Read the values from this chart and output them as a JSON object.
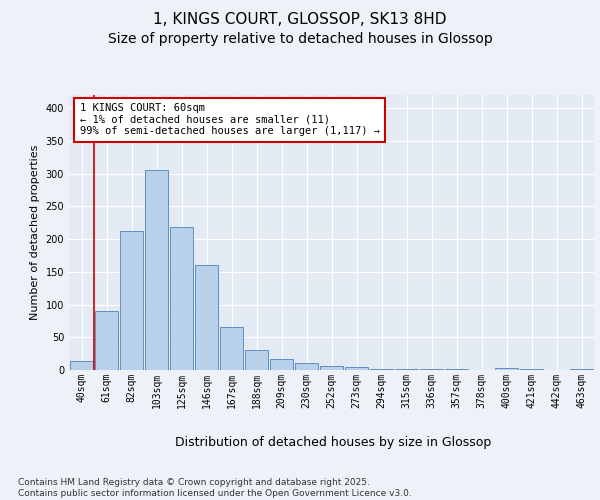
{
  "title": "1, KINGS COURT, GLOSSOP, SK13 8HD",
  "subtitle": "Size of property relative to detached houses in Glossop",
  "xlabel": "Distribution of detached houses by size in Glossop",
  "ylabel": "Number of detached properties",
  "categories": [
    "40sqm",
    "61sqm",
    "82sqm",
    "103sqm",
    "125sqm",
    "146sqm",
    "167sqm",
    "188sqm",
    "209sqm",
    "230sqm",
    "252sqm",
    "273sqm",
    "294sqm",
    "315sqm",
    "336sqm",
    "357sqm",
    "378sqm",
    "400sqm",
    "421sqm",
    "442sqm",
    "463sqm"
  ],
  "values": [
    14,
    90,
    213,
    305,
    218,
    160,
    65,
    30,
    17,
    10,
    6,
    4,
    1,
    2,
    1,
    1,
    0,
    3,
    1,
    0,
    2
  ],
  "bar_color": "#b8d0ea",
  "bar_edge_color": "#6090c0",
  "annotation_text": "1 KINGS COURT: 60sqm\n← 1% of detached houses are smaller (11)\n99% of semi-detached houses are larger (1,117) →",
  "annotation_box_color": "#ffffff",
  "annotation_box_edge_color": "#cc0000",
  "vline_color": "#cc0000",
  "vline_x": 0.5,
  "ylim": [
    0,
    420
  ],
  "yticks": [
    0,
    50,
    100,
    150,
    200,
    250,
    300,
    350,
    400
  ],
  "background_color": "#eef2f8",
  "plot_bg_color": "#e4eaf4",
  "footer": "Contains HM Land Registry data © Crown copyright and database right 2025.\nContains public sector information licensed under the Open Government Licence v3.0.",
  "title_fontsize": 11,
  "subtitle_fontsize": 10,
  "xlabel_fontsize": 9,
  "ylabel_fontsize": 8,
  "tick_fontsize": 7,
  "annotation_fontsize": 7.5,
  "footer_fontsize": 6.5
}
